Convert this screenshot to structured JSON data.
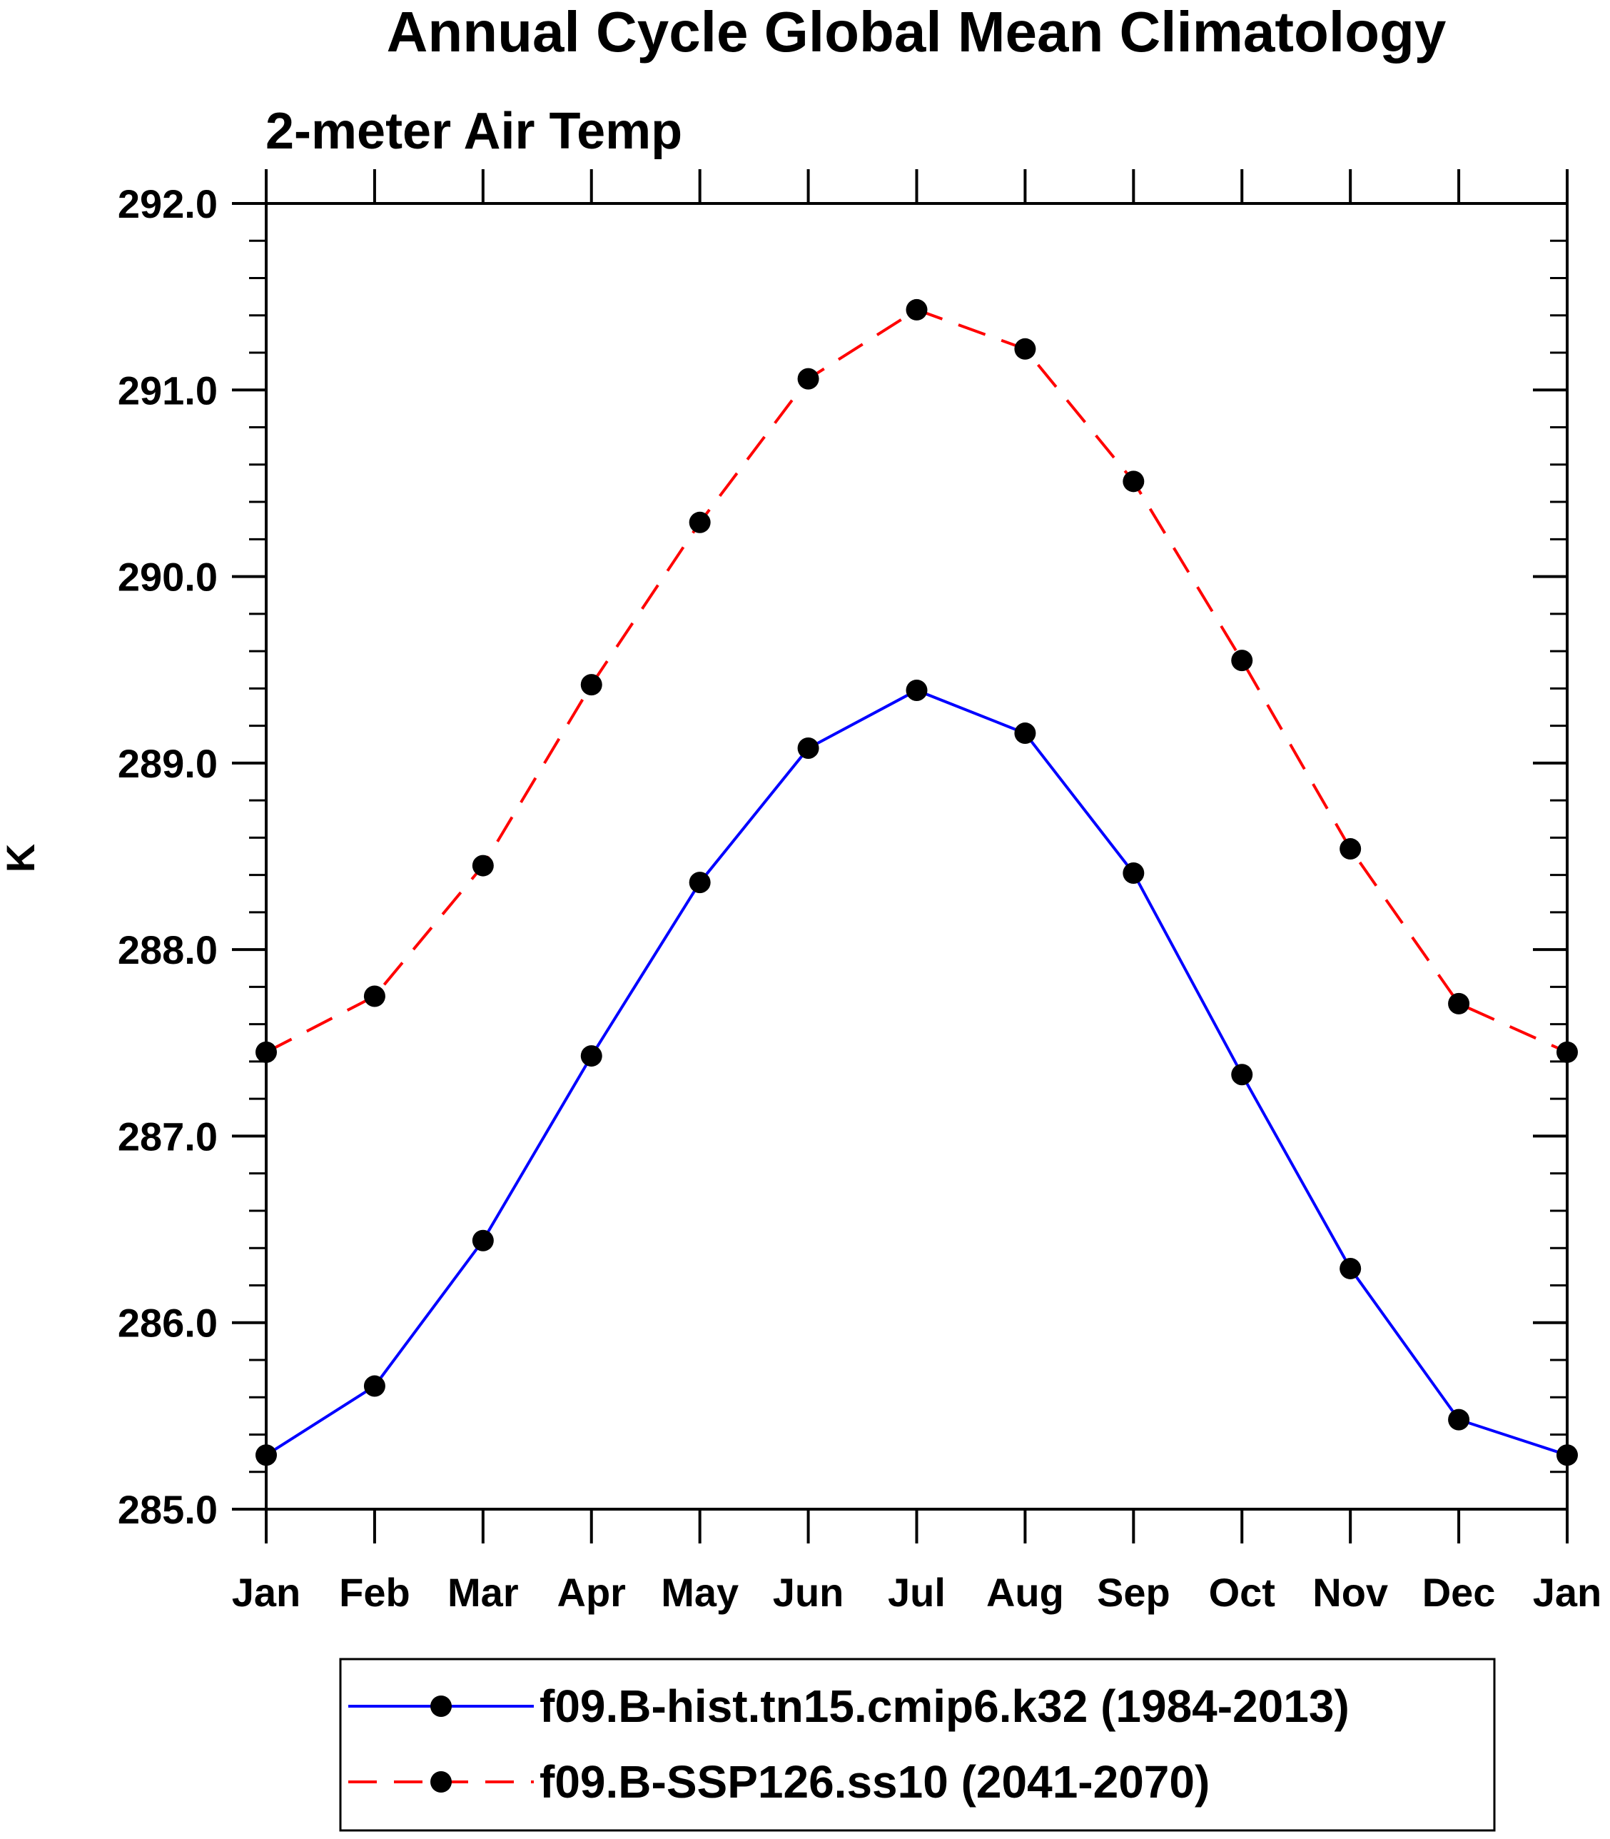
{
  "chart_data": {
    "type": "line",
    "title": "Annual Cycle Global Mean Climatology",
    "subtitle": "2-meter Air Temp",
    "xlabel": "",
    "ylabel": "K",
    "categories": [
      "Jan",
      "Feb",
      "Mar",
      "Apr",
      "May",
      "Jun",
      "Jul",
      "Aug",
      "Sep",
      "Oct",
      "Nov",
      "Dec",
      "Jan"
    ],
    "ylim": [
      285.0,
      292.0
    ],
    "yticks": [
      285.0,
      286.0,
      287.0,
      288.0,
      289.0,
      290.0,
      291.0,
      292.0
    ],
    "ytick_labels": [
      "285.0",
      "286.0",
      "287.0",
      "288.0",
      "289.0",
      "290.0",
      "291.0",
      "292.0"
    ],
    "grid": false,
    "legend_position": "bottom",
    "series": [
      {
        "name": "f09.B-hist.tn15.cmip6.k32 (1984-2013)",
        "color": "#0000ff",
        "dash": "solid",
        "marker": "filled-circle",
        "values": [
          285.29,
          285.66,
          286.44,
          287.43,
          288.36,
          289.08,
          289.39,
          289.16,
          288.41,
          287.33,
          286.29,
          285.48,
          285.29
        ]
      },
      {
        "name": "f09.B-SSP126.ss10 (2041-2070)",
        "color": "#ff0000",
        "dash": "dashed",
        "marker": "filled-circle",
        "values": [
          287.45,
          287.75,
          288.45,
          289.42,
          290.29,
          291.06,
          291.43,
          291.22,
          290.51,
          289.55,
          288.54,
          287.71,
          287.45
        ]
      }
    ]
  }
}
